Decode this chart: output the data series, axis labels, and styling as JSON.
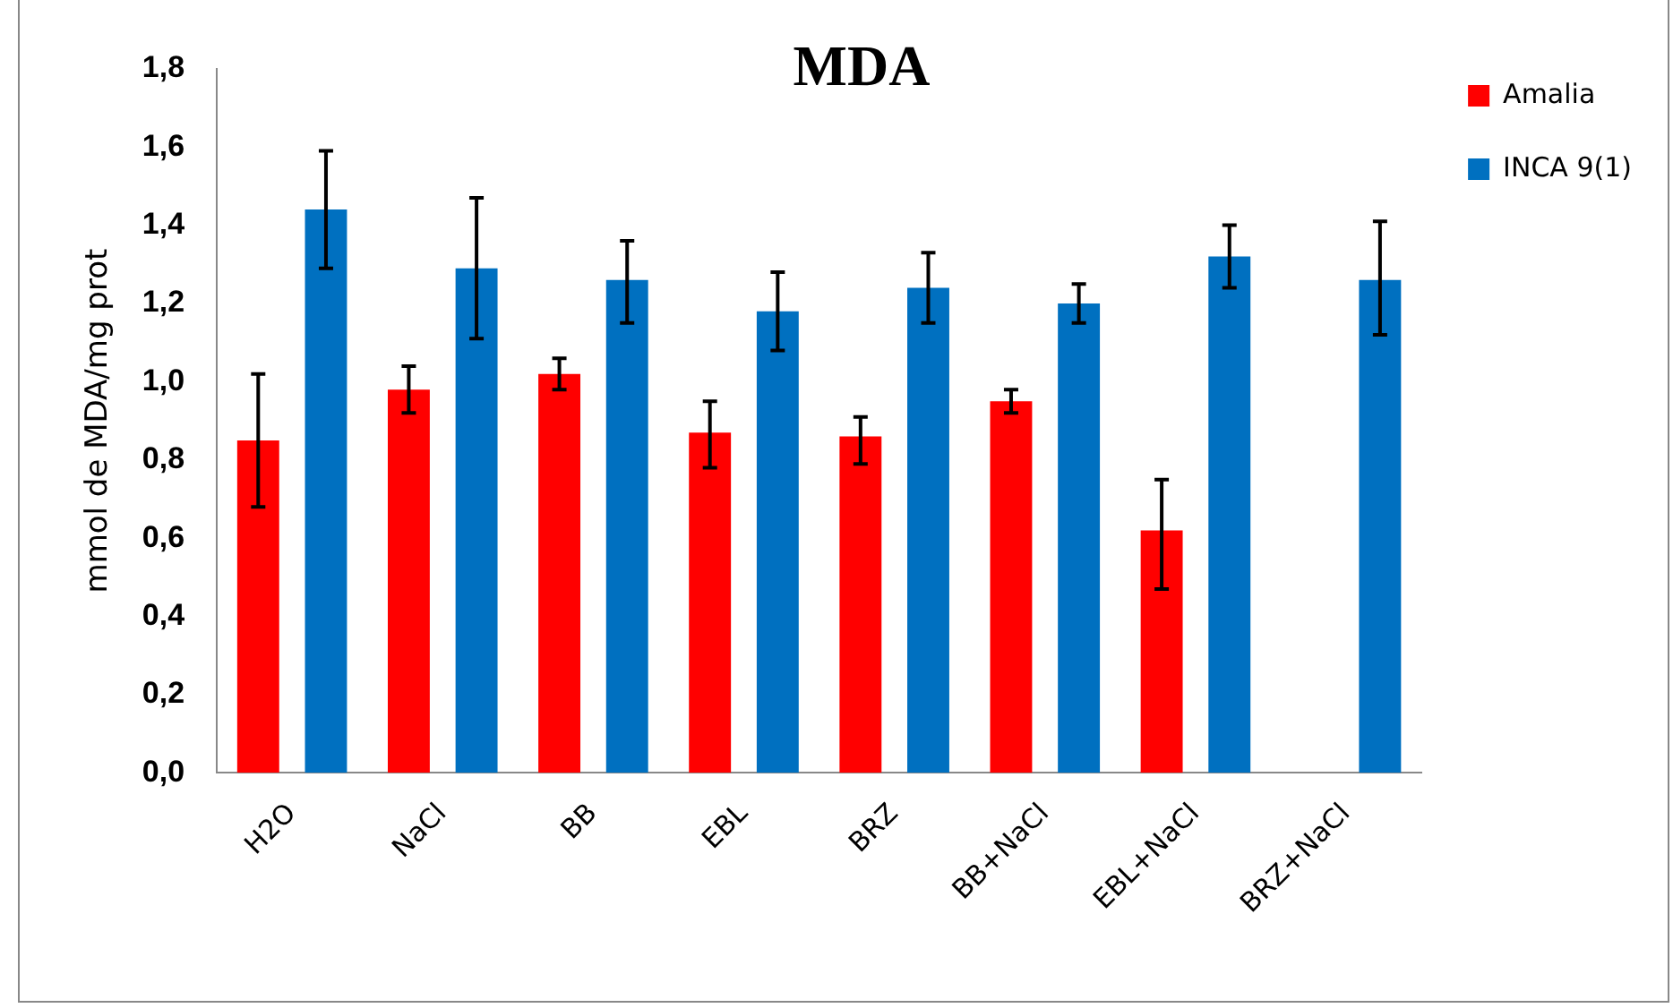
{
  "chart_data": {
    "type": "bar",
    "title": "MDA",
    "ylabel": "mmol de MDA/mg prot",
    "categories": [
      "H2O",
      "NaCl",
      "BB",
      "EBL",
      "BRZ",
      "BB+NaCl",
      "EBL+NaCl",
      "BRZ+NaCl"
    ],
    "series": [
      {
        "name": "Amalia",
        "color": "#ff0000",
        "values": [
          0.85,
          0.98,
          1.02,
          0.87,
          0.86,
          0.95,
          0.62,
          null
        ],
        "errors": [
          [
            0.68,
            1.02
          ],
          [
            0.92,
            1.04
          ],
          [
            0.98,
            1.06
          ],
          [
            0.78,
            0.95
          ],
          [
            0.79,
            0.91
          ],
          [
            0.92,
            0.98
          ],
          [
            0.47,
            0.75
          ],
          null
        ]
      },
      {
        "name": "INCA 9(1)",
        "color": "#0070c0",
        "values": [
          1.44,
          1.29,
          1.26,
          1.18,
          1.24,
          1.2,
          1.32,
          1.26
        ],
        "errors": [
          [
            1.29,
            1.59
          ],
          [
            1.11,
            1.47
          ],
          [
            1.15,
            1.36
          ],
          [
            1.08,
            1.28
          ],
          [
            1.15,
            1.33
          ],
          [
            1.15,
            1.25
          ],
          [
            1.24,
            1.4
          ],
          [
            1.12,
            1.41
          ]
        ]
      }
    ],
    "ylim": [
      0,
      1.8
    ],
    "yticks": [
      {
        "value": 0,
        "label": "0,0"
      },
      {
        "value": 0.2,
        "label": "0,2"
      },
      {
        "value": 0.4,
        "label": "0,4"
      },
      {
        "value": 0.6,
        "label": "0,6"
      },
      {
        "value": 0.8,
        "label": "0,8"
      },
      {
        "value": 1,
        "label": "1,0"
      },
      {
        "value": 1.2,
        "label": "1,2"
      },
      {
        "value": 1.4,
        "label": "1,4"
      },
      {
        "value": 1.6,
        "label": "1,6"
      },
      {
        "value": 1.8,
        "label": "1,8"
      }
    ],
    "legend": "top right",
    "grid": false
  }
}
